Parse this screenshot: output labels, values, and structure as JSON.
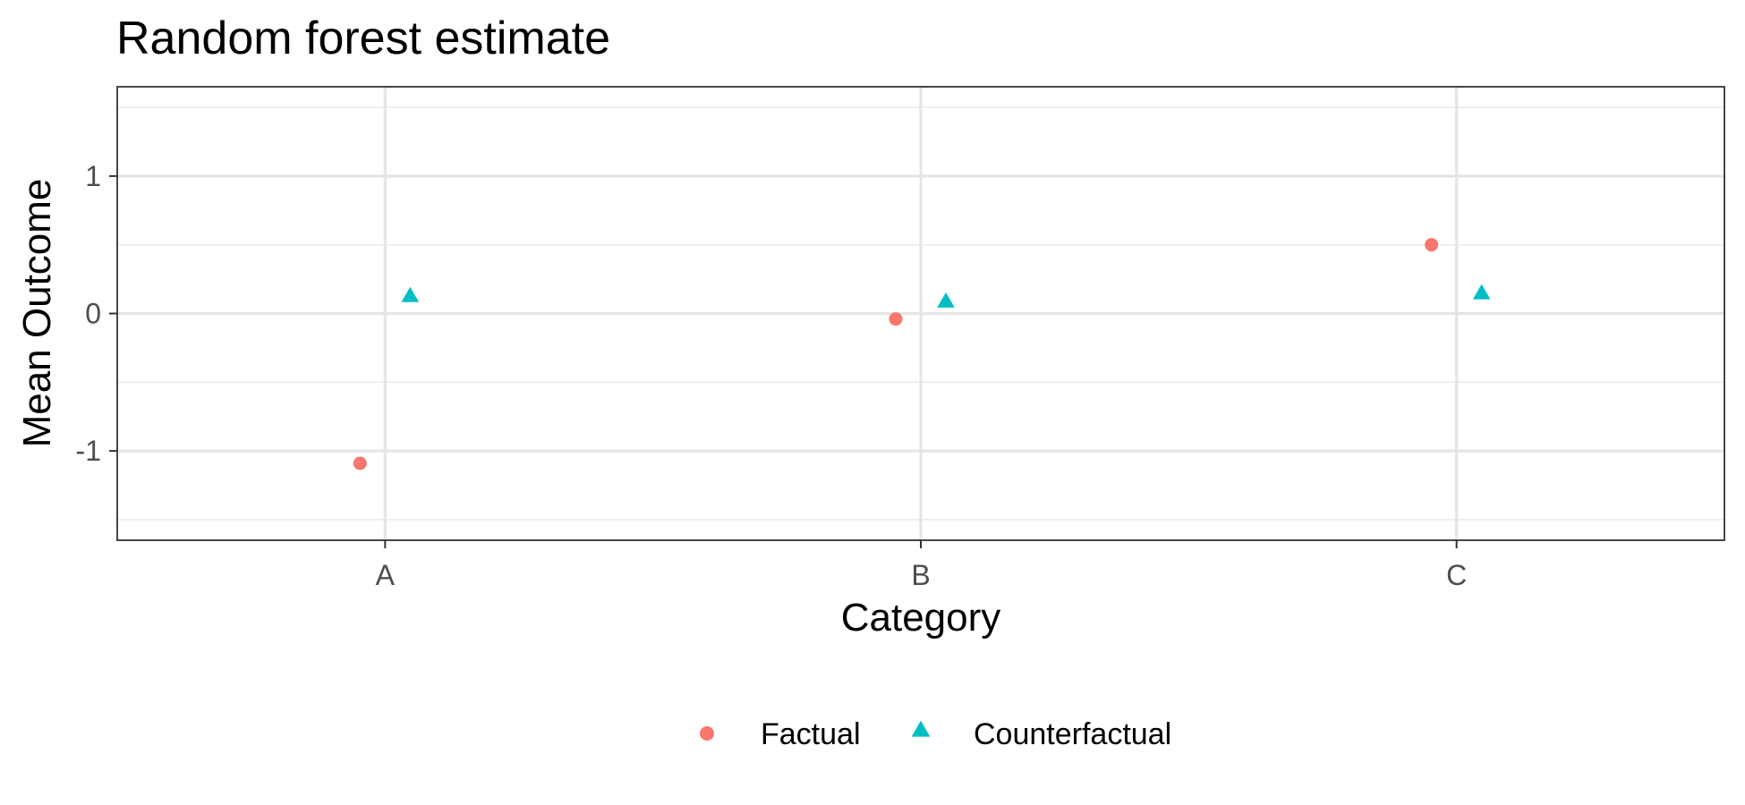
{
  "chart_data": {
    "type": "scatter",
    "title": "Random forest estimate",
    "xlabel": "Category",
    "ylabel": "Mean Outcome",
    "categories": [
      "A",
      "B",
      "C"
    ],
    "ylim": [
      -1.65,
      1.65
    ],
    "y_ticks": [
      -1,
      0,
      1
    ],
    "y_tick_labels": [
      "-1",
      "0",
      "1"
    ],
    "grid": true,
    "legend_position": "bottom",
    "series": [
      {
        "name": "Factual",
        "marker": "circle",
        "color": "#F8766D",
        "values": [
          -1.09,
          -0.04,
          0.5
        ]
      },
      {
        "name": "Counterfactual",
        "marker": "triangle",
        "color": "#00BFC4",
        "values": [
          0.13,
          0.09,
          0.15
        ]
      }
    ]
  }
}
